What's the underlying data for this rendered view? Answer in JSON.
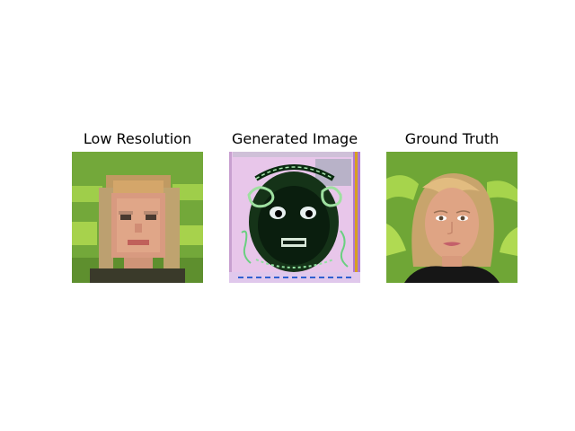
{
  "panels": [
    {
      "title": "Low Resolution"
    },
    {
      "title": "Generated Image"
    },
    {
      "title": "Ground Truth"
    }
  ],
  "colors": {
    "background_green": "#6fa83a",
    "hair_blonde": "#c9a06a",
    "skin": "#d99a80",
    "generated_pink": "#e6c2e4",
    "generated_dark": "#0e2a14"
  }
}
